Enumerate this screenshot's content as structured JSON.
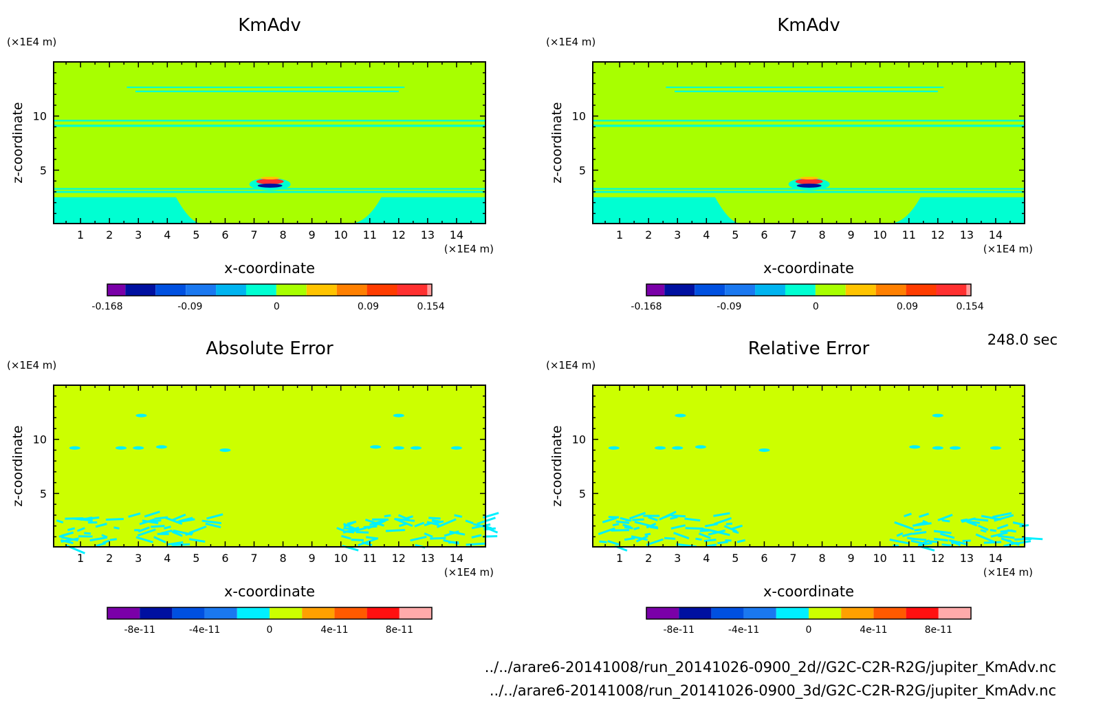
{
  "time_label": "248.0 sec",
  "footer": {
    "line1": "../../arare6-20141008/run_20141026-0900_2d//G2C-C2R-R2G/jupiter_KmAdv.nc",
    "line2": "../../arare6-20141008/run_20141026-0900_3d/G2C-C2R-R2G/jupiter_KmAdv.nc"
  },
  "chart_data": [
    {
      "type": "heatmap",
      "title": "KmAdv",
      "xlabel": "x-coordinate",
      "ylabel": "z-coordinate",
      "x_unit": "(×1E4 m)",
      "y_unit": "(×1E4 m)",
      "x_ticks": [
        1,
        2,
        3,
        4,
        5,
        6,
        7,
        8,
        9,
        10,
        11,
        12,
        13,
        14
      ],
      "y_ticks": [
        5,
        10
      ],
      "xlim": [
        0.07,
        15
      ],
      "ylim": [
        0.07,
        15
      ],
      "colorbar": {
        "colors": [
          "#7a00a8",
          "#0010a0",
          "#0050e0",
          "#1a78f0",
          "#00b4f0",
          "#00ffd2",
          "#a8ff00",
          "#ffc400",
          "#ff8000",
          "#ff3c00",
          "#ff3030",
          "#ff9a9a"
        ],
        "tick_labels": [
          "-0.168",
          "-0.09",
          "0",
          "0.09",
          "0.154"
        ],
        "tick_positions": [
          0,
          0.255,
          0.522,
          0.804,
          0.997
        ]
      },
      "background_value": 0
    },
    {
      "type": "heatmap",
      "title": "KmAdv",
      "xlabel": "x-coordinate",
      "ylabel": "z-coordinate",
      "x_unit": "(×1E4 m)",
      "y_unit": "(×1E4 m)",
      "x_ticks": [
        1,
        2,
        3,
        4,
        5,
        6,
        7,
        8,
        9,
        10,
        11,
        12,
        13,
        14
      ],
      "y_ticks": [
        5,
        10
      ],
      "xlim": [
        0.07,
        15
      ],
      "ylim": [
        0.07,
        15
      ],
      "colorbar": {
        "colors": [
          "#7a00a8",
          "#0010a0",
          "#0050e0",
          "#1a78f0",
          "#00b4f0",
          "#00ffd2",
          "#a8ff00",
          "#ffc400",
          "#ff8000",
          "#ff3c00",
          "#ff3030",
          "#ff9a9a"
        ],
        "tick_labels": [
          "-0.168",
          "-0.09",
          "0",
          "0.09",
          "0.154"
        ],
        "tick_positions": [
          0,
          0.255,
          0.522,
          0.804,
          0.997
        ]
      },
      "background_value": 0
    },
    {
      "type": "heatmap",
      "title": "Absolute Error",
      "xlabel": "x-coordinate",
      "ylabel": "z-coordinate",
      "x_unit": "(×1E4 m)",
      "y_unit": "(×1E4 m)",
      "x_ticks": [
        1,
        2,
        3,
        4,
        5,
        6,
        7,
        8,
        9,
        10,
        11,
        12,
        13,
        14
      ],
      "y_ticks": [
        5,
        10
      ],
      "xlim": [
        0.07,
        15
      ],
      "ylim": [
        0.07,
        15
      ],
      "colorbar": {
        "colors": [
          "#7a00a8",
          "#0010a0",
          "#0050e0",
          "#1a78f0",
          "#00f0ff",
          "#ccff00",
          "#ffa000",
          "#ff5a00",
          "#ff1010",
          "#ffaaaa"
        ],
        "tick_labels": [
          "-8e-11",
          "-4e-11",
          "0",
          "4e-11",
          "8e-11"
        ],
        "tick_positions": [
          0.1,
          0.3,
          0.5,
          0.7,
          0.9
        ]
      },
      "background_value": 0
    },
    {
      "type": "heatmap",
      "title": "Relative Error",
      "xlabel": "x-coordinate",
      "ylabel": "z-coordinate",
      "x_unit": "(×1E4 m)",
      "y_unit": "(×1E4 m)",
      "x_ticks": [
        1,
        2,
        3,
        4,
        5,
        6,
        7,
        8,
        9,
        10,
        11,
        12,
        13,
        14
      ],
      "y_ticks": [
        5,
        10
      ],
      "xlim": [
        0.07,
        15
      ],
      "ylim": [
        0.07,
        15
      ],
      "colorbar": {
        "colors": [
          "#7a00a8",
          "#0010a0",
          "#0050e0",
          "#1a78f0",
          "#00f0ff",
          "#ccff00",
          "#ffa000",
          "#ff5a00",
          "#ff1010",
          "#ffaaaa"
        ],
        "tick_labels": [
          "-8e-11",
          "-4e-11",
          "0",
          "4e-11",
          "8e-11"
        ],
        "tick_positions": [
          0.1,
          0.3,
          0.5,
          0.7,
          0.9
        ]
      },
      "background_value": 0
    }
  ]
}
